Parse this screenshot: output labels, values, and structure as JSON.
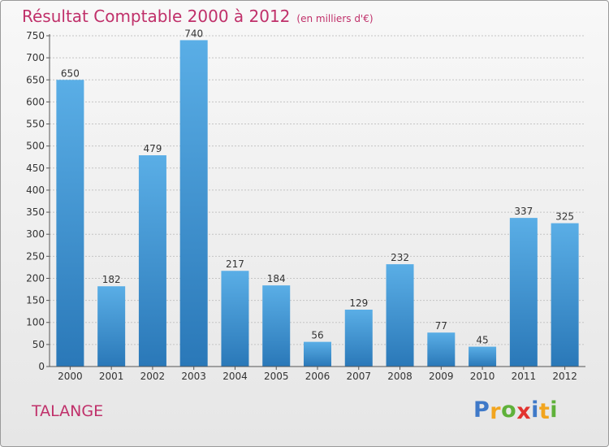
{
  "header": {
    "title": "Résultat Comptable 2000 à 2012",
    "subtitle": "(en milliers d'€)"
  },
  "commune": "TALANGE",
  "logo": {
    "text": "Proxiti",
    "letters": [
      {
        "ch": "P",
        "color": "#3f79c8"
      },
      {
        "ch": "r",
        "color": "#f2a51f"
      },
      {
        "ch": "o",
        "color": "#5fb13a"
      },
      {
        "ch": "x",
        "color": "#e2332f"
      },
      {
        "ch": "i",
        "color": "#3f79c8"
      },
      {
        "ch": "t",
        "color": "#f2a51f"
      },
      {
        "ch": "i",
        "color": "#5fb13a"
      }
    ]
  },
  "colors": {
    "bar_top": "#5aaee6",
    "bar_bottom": "#2a78b8",
    "accent": "#c0306a"
  },
  "chart_data": {
    "type": "bar",
    "categories": [
      "2000",
      "2001",
      "2002",
      "2003",
      "2004",
      "2005",
      "2006",
      "2007",
      "2008",
      "2009",
      "2010",
      "2011",
      "2012"
    ],
    "values": [
      650,
      182,
      479,
      740,
      217,
      184,
      56,
      129,
      232,
      77,
      45,
      337,
      325
    ],
    "y_ticks": [
      0,
      50,
      100,
      150,
      200,
      250,
      300,
      350,
      400,
      450,
      500,
      550,
      600,
      650,
      700,
      750
    ],
    "ylim": [
      0,
      750
    ],
    "grid": true
  }
}
